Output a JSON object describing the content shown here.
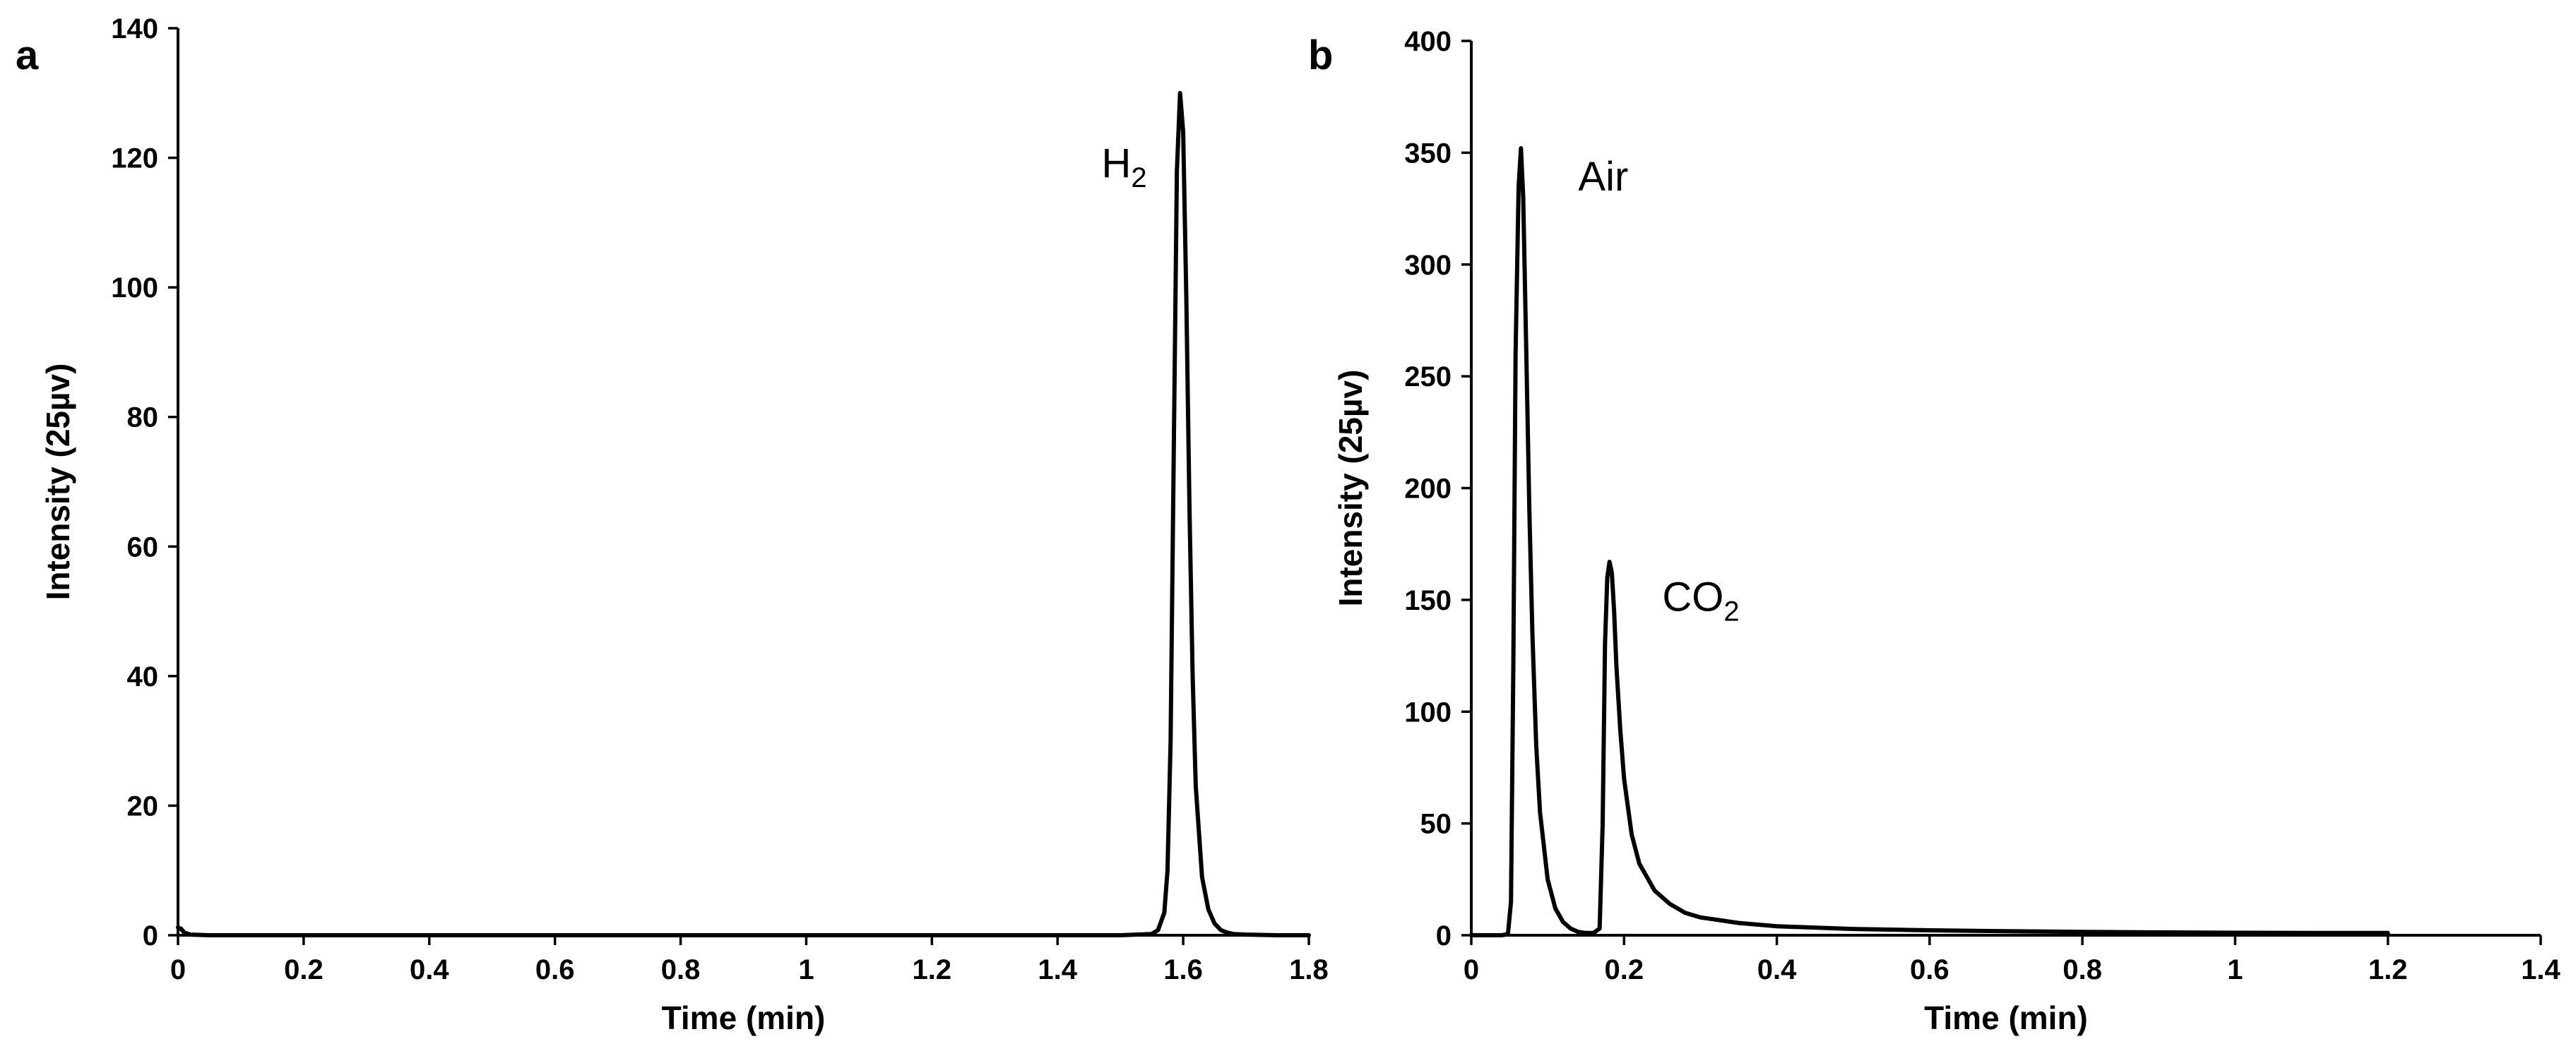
{
  "chart_data": [
    {
      "type": "line",
      "panel_label": "a",
      "xlabel": "Time (min)",
      "ylabel": "Intensity (25µv)",
      "xlim": [
        0,
        1.8
      ],
      "ylim": [
        0,
        140
      ],
      "xticks": [
        0,
        0.2,
        0.4,
        0.6,
        0.8,
        1,
        1.2,
        1.4,
        1.6,
        1.8
      ],
      "xtick_labels": [
        "0",
        "0.2",
        "0.4",
        "0.6",
        "0.8",
        "1",
        "1.2",
        "1.4",
        "1.6",
        "1.8"
      ],
      "yticks": [
        0,
        20,
        40,
        60,
        80,
        100,
        120,
        140
      ],
      "ytick_labels": [
        "0",
        "20",
        "40",
        "60",
        "80",
        "100",
        "120",
        "140"
      ],
      "grid": false,
      "annotations": [
        {
          "main": "H",
          "sub": "2",
          "x": 1.47,
          "y": 117
        }
      ],
      "series": [
        {
          "x": [
            0,
            0.005,
            0.01,
            0.02,
            0.05,
            1.5,
            1.55,
            1.56,
            1.57,
            1.575,
            1.58,
            1.585,
            1.59,
            1.595,
            1.6,
            1.605,
            1.61,
            1.615,
            1.62,
            1.63,
            1.64,
            1.65,
            1.66,
            1.67,
            1.68,
            1.7,
            1.75,
            1.8
          ],
          "y": [
            1.2,
            1,
            0.4,
            0.1,
            0,
            0,
            0.2,
            0.8,
            3.5,
            10,
            30,
            75,
            118,
            130,
            124,
            98,
            66,
            40,
            23,
            9,
            4,
            1.8,
            0.8,
            0.4,
            0.2,
            0.1,
            0,
            0
          ]
        }
      ]
    },
    {
      "type": "line",
      "panel_label": "b",
      "xlabel": "Time (min)",
      "ylabel": "Intensity (25µv)",
      "xlim": [
        0,
        1.4
      ],
      "ylim": [
        0,
        400
      ],
      "xticks": [
        0,
        0.2,
        0.4,
        0.6,
        0.8,
        1,
        1.2,
        1.4
      ],
      "xtick_labels": [
        "0",
        "0.2",
        "0.4",
        "0.6",
        "0.8",
        "1",
        "1.2",
        "1.4"
      ],
      "yticks": [
        0,
        50,
        100,
        150,
        200,
        250,
        300,
        350,
        400
      ],
      "ytick_labels": [
        "0",
        "50",
        "100",
        "150",
        "200",
        "250",
        "300",
        "350",
        "400"
      ],
      "grid": false,
      "annotations": [
        {
          "main": "Air",
          "sub": "",
          "x": 0.14,
          "y": 333
        },
        {
          "main": "CO",
          "sub": "2",
          "x": 0.25,
          "y": 145
        }
      ],
      "series": [
        {
          "x": [
            0,
            0.04,
            0.048,
            0.052,
            0.055,
            0.058,
            0.062,
            0.065,
            0.068,
            0.072,
            0.076,
            0.08,
            0.085,
            0.09,
            0.1,
            0.11,
            0.12,
            0.13,
            0.14,
            0.15,
            0.16,
            0.168,
            0.172,
            0.175,
            0.178,
            0.181,
            0.184,
            0.187,
            0.19,
            0.195,
            0.2,
            0.21,
            0.22,
            0.24,
            0.26,
            0.28,
            0.3,
            0.35,
            0.4,
            0.5,
            0.6,
            0.7,
            0.8,
            0.9,
            1.0,
            1.1,
            1.2
          ],
          "y": [
            0,
            0,
            0.5,
            15,
            120,
            260,
            335,
            352,
            330,
            260,
            190,
            135,
            85,
            55,
            25,
            12,
            6,
            3,
            1.5,
            1,
            1,
            3,
            50,
            130,
            160,
            167,
            162,
            145,
            120,
            92,
            70,
            45,
            32,
            20,
            14,
            10,
            8,
            5.5,
            4,
            2.8,
            2.2,
            1.8,
            1.5,
            1.3,
            1.1,
            1,
            1
          ]
        }
      ]
    }
  ]
}
